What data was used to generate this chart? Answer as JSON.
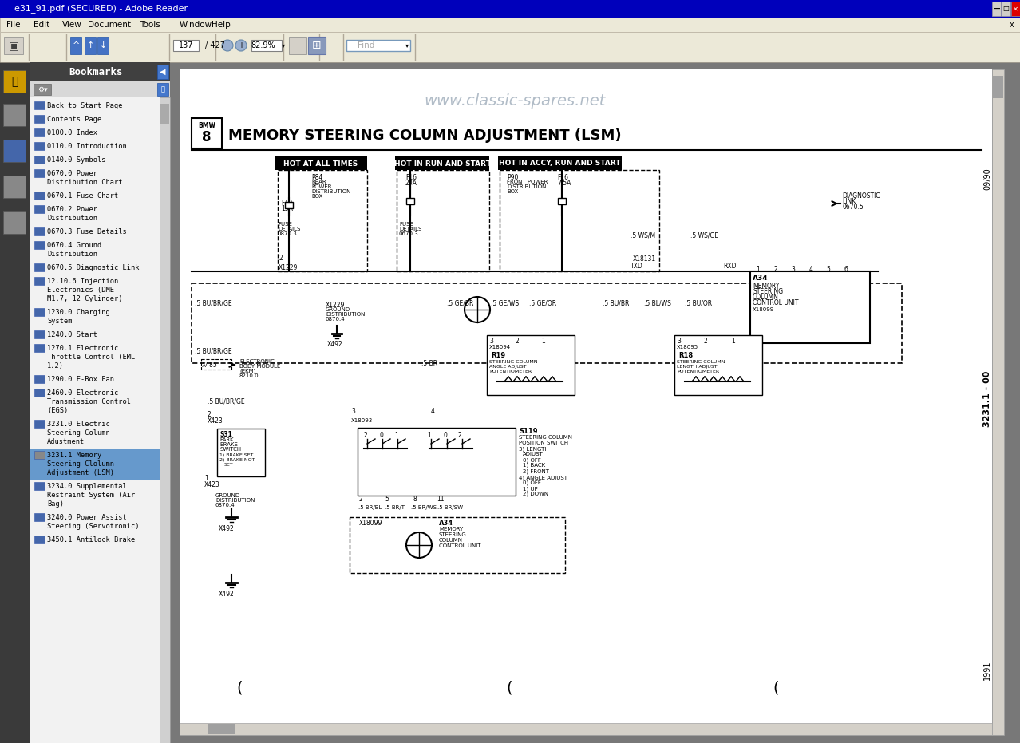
{
  "title_bar": "e31_91.pdf (SECURED) - Adobe Reader",
  "menu_items": [
    "File",
    "Edit",
    "View",
    "Document",
    "Tools",
    "Window",
    "Help"
  ],
  "page_num": "137 / 427",
  "zoom_level": "82.9%",
  "bookmarks_title": "Bookmarks",
  "bookmark_items": [
    "Back to Start Page",
    "Contents Page",
    "0100.0 Index",
    "0110.0 Introduction",
    "0140.0 Symbols",
    "0670.0 Power\nDistribution Chart",
    "0670.1 Fuse Chart",
    "0670.2 Power\nDistribution",
    "0670.3 Fuse Details",
    "0670.4 Ground\nDistribution",
    "0670.5 Diagnostic Link",
    "12.10.6 Injection\nElectronics (DME\nM1.7, 12 Cylinder)",
    "1230.0 Charging\nSystem",
    "1240.0 Start",
    "1270.1 Electronic\nThrottle Control (EML\n1.2)",
    "1290.0 E-Box Fan",
    "2460.0 Electronic\nTransmission Control\n(EGS)",
    "3231.0 Electric\nSteering Column\nAdustment",
    "3231.1 Memory\nSteering Clolumn\nAdjustment (LSM)",
    "3234.0 Supplemental\nRestraint System (Air\nBag)",
    "3240.0 Power Assist\nSteering (Servotronic)",
    "3450.1 Antilock Brake"
  ],
  "active_bookmark_index": 18,
  "diagram_title": "MEMORY STEERING COLUMN ADJUSTMENT (LSM)",
  "watermark": "www.classic-spares.net",
  "right_label_top": "09/90",
  "right_label_mid": "3231.1 - 00",
  "right_label_bot": "1991",
  "bg_color": "#c0c0c0",
  "window_title_bg": "#0000bb",
  "toolbar_bg": "#ece9d8",
  "sidebar_bg": "#3a3a3a",
  "bookmark_panel_bg": "#f0f0f0",
  "active_bookmark_bg": "#6699cc",
  "diagram_bg": "#ffffff",
  "title_text_color": "#ffffff",
  "menu_text_color": "#000000"
}
